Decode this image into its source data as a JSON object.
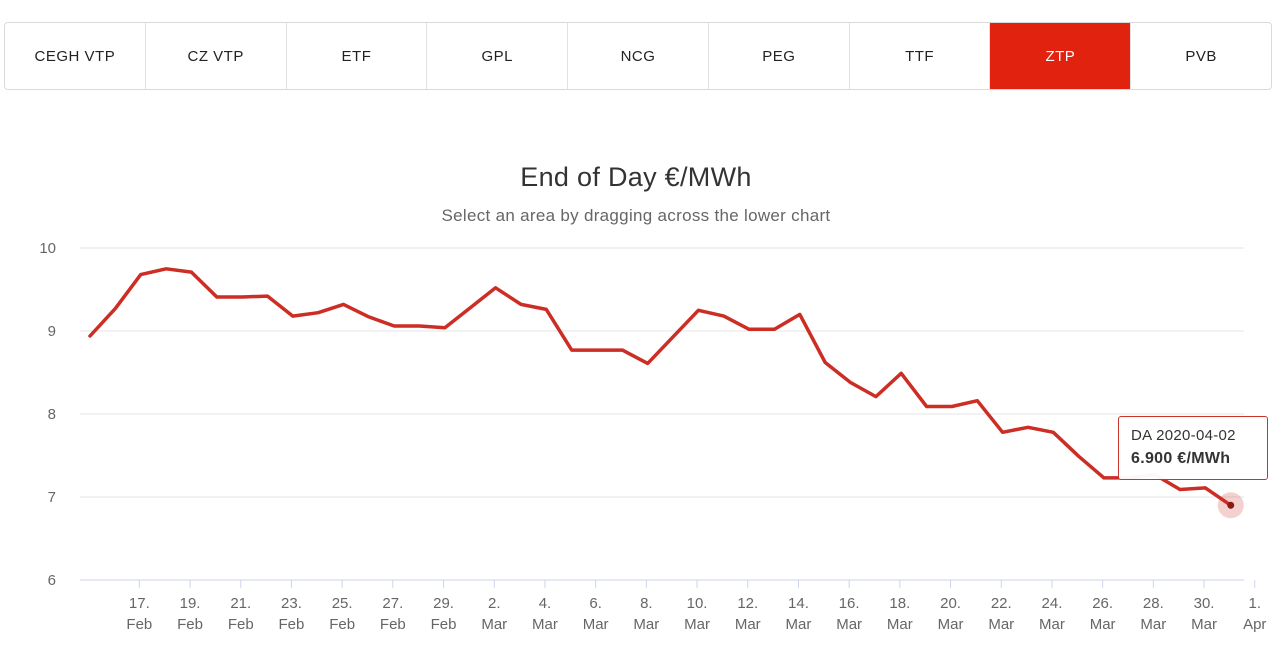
{
  "tabs": [
    {
      "label": "CEGH VTP",
      "active": false
    },
    {
      "label": "CZ VTP",
      "active": false
    },
    {
      "label": "ETF",
      "active": false
    },
    {
      "label": "GPL",
      "active": false
    },
    {
      "label": "NCG",
      "active": false
    },
    {
      "label": "PEG",
      "active": false
    },
    {
      "label": "TTF",
      "active": false
    },
    {
      "label": "ZTP",
      "active": true
    },
    {
      "label": "PVB",
      "active": false
    }
  ],
  "colors": {
    "accent": "#e0220f",
    "line": "#cc2d24",
    "grid": "#e6e6e6",
    "axis": "#ccd6eb"
  },
  "tooltip": {
    "label": "DA 2020-04-02",
    "value": "6.900 €/MWh"
  },
  "chart_data": {
    "type": "line",
    "title": "End of Day €/MWh",
    "subtitle": "Select an area by dragging across the lower chart",
    "ylim": [
      6,
      10
    ],
    "yticks": [
      "6",
      "7",
      "8",
      "9",
      "10"
    ],
    "grid": true,
    "x_start": "2020-02-16",
    "xticks": [
      {
        "day": "17.",
        "month": "Feb"
      },
      {
        "day": "19.",
        "month": "Feb"
      },
      {
        "day": "21.",
        "month": "Feb"
      },
      {
        "day": "23.",
        "month": "Feb"
      },
      {
        "day": "25.",
        "month": "Feb"
      },
      {
        "day": "27.",
        "month": "Feb"
      },
      {
        "day": "29.",
        "month": "Feb"
      },
      {
        "day": "2.",
        "month": "Mar"
      },
      {
        "day": "4.",
        "month": "Mar"
      },
      {
        "day": "6.",
        "month": "Mar"
      },
      {
        "day": "8.",
        "month": "Mar"
      },
      {
        "day": "10.",
        "month": "Mar"
      },
      {
        "day": "12.",
        "month": "Mar"
      },
      {
        "day": "14.",
        "month": "Mar"
      },
      {
        "day": "16.",
        "month": "Mar"
      },
      {
        "day": "18.",
        "month": "Mar"
      },
      {
        "day": "20.",
        "month": "Mar"
      },
      {
        "day": "22.",
        "month": "Mar"
      },
      {
        "day": "24.",
        "month": "Mar"
      },
      {
        "day": "26.",
        "month": "Mar"
      },
      {
        "day": "28.",
        "month": "Mar"
      },
      {
        "day": "30.",
        "month": "Mar"
      },
      {
        "day": "1.",
        "month": "Apr"
      }
    ],
    "series": [
      {
        "values": [
          8.94,
          9.27,
          9.68,
          9.75,
          9.71,
          9.41,
          9.41,
          9.42,
          9.18,
          9.22,
          9.32,
          9.17,
          9.06,
          9.06,
          9.04,
          9.28,
          9.52,
          9.32,
          9.26,
          8.77,
          8.77,
          8.77,
          8.61,
          8.93,
          9.25,
          9.18,
          9.02,
          9.02,
          9.2,
          8.62,
          8.38,
          8.21,
          8.49,
          8.09,
          8.09,
          8.16,
          7.78,
          7.84,
          7.78,
          7.49,
          7.23,
          7.23,
          7.27,
          7.09,
          7.11,
          6.9
        ]
      }
    ],
    "highlight_index": 45
  }
}
